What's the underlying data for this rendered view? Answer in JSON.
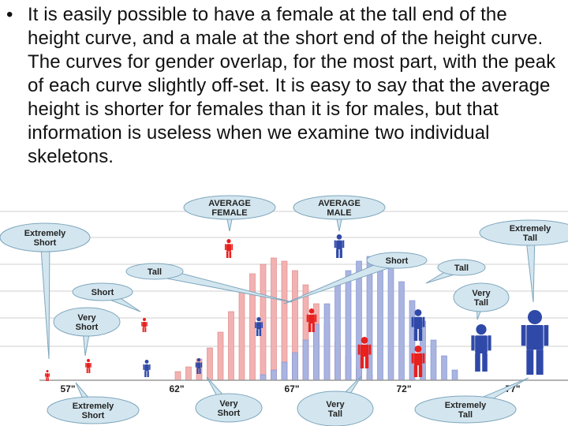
{
  "slide": {
    "bullet_symbol": "•",
    "bullet_text": "It is easily possible to have a female at the tall end of the height curve, and a male at the short end of the height curve. The curves for gender overlap, for the most part, with the peak of each curve slightly off-set. It is easy to say that the average height is shorter for females than it is for males, but that information is useless when we examine two individual skeletons."
  },
  "figure": {
    "x_ticks": [
      "57\"",
      "62\"",
      "67\"",
      "72\"",
      "77\""
    ],
    "callouts": {
      "average_female": [
        "AVERAGE",
        "FEMALE"
      ],
      "average_male": [
        "AVERAGE",
        "MALE"
      ],
      "extremely_short_left": [
        "Extremely",
        "Short"
      ],
      "extremely_tall_right": [
        "Extremely",
        "Tall"
      ],
      "tall_female": [
        "Tall"
      ],
      "short_male": [
        "Short"
      ],
      "tall_male": [
        "Tall"
      ],
      "short_female": [
        "Short"
      ],
      "very_short_female": [
        "Very",
        "Short"
      ],
      "very_tall_male": [
        "Very",
        "Tall"
      ],
      "extremely_short_bottom": [
        "Extremely",
        "Short"
      ],
      "very_short_bottom": [
        "Very",
        "Short"
      ],
      "very_tall_bottom": [
        "Very",
        "Tall"
      ],
      "extremely_tall_bottom": [
        "Extremely",
        "Tall"
      ]
    },
    "colors": {
      "female": "#e8201e",
      "male": "#2f49a8",
      "female_bar": "#f3b2b2",
      "male_bar": "#a9b4e0",
      "callout_fill": "#d3e6ef",
      "callout_stroke": "#7ea6bd",
      "grid": "#cfcfcf",
      "background": "#ffffff"
    },
    "icons": {
      "female": "female-person-icon",
      "male": "male-person-icon"
    }
  }
}
